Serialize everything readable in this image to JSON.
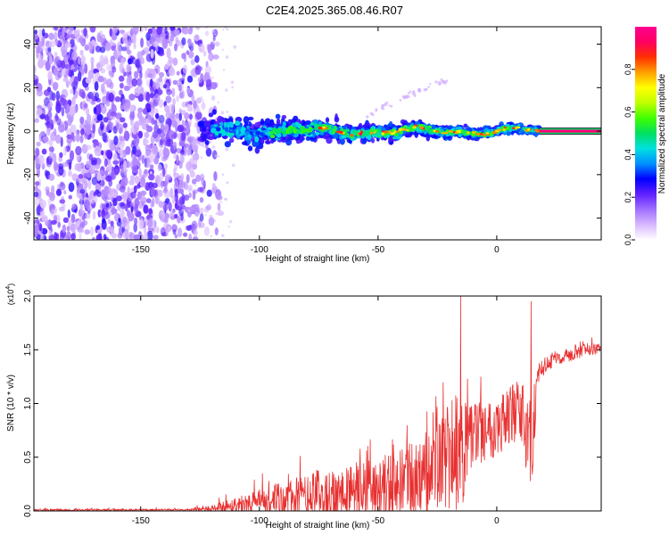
{
  "title": "C2E4.2025.365.08.46.R07",
  "chart_data": [
    {
      "type": "heatmap",
      "title": "C2E4.2025.365.08.46.R07",
      "xlabel": "Height of straight line (km)",
      "ylabel": "Frequency (Hz)",
      "xlim": [
        -195,
        44
      ],
      "ylim": [
        -50,
        48
      ],
      "xticks": [
        -150,
        -100,
        -50,
        0
      ],
      "yticks": [
        -40,
        -20,
        0,
        20,
        40
      ],
      "colorbar": {
        "label": "Normalized spectral amplitude",
        "range": [
          0.0,
          1.0
        ],
        "ticks": [
          0.0,
          0.2,
          0.4,
          0.6,
          0.8
        ],
        "colors": [
          "#ffffff",
          "#d8b8ff",
          "#a070ff",
          "#6020ff",
          "#0000ff",
          "#0090ff",
          "#00e0e0",
          "#00e060",
          "#40ff00",
          "#c0ff00",
          "#ffff00",
          "#ffa000",
          "#ff3000",
          "#ff0060",
          "#ff0090"
        ]
      },
      "features": {
        "noise_region_x": [
          -195,
          -115
        ],
        "signal_start_x": -125,
        "signal_center_freq": 0,
        "signal_freq_spread_at_start": 5,
        "signal_freq_spread_at_end": 1,
        "strong_tone_start_x": 18,
        "secondary_line": {
          "x": [
            -55,
            -20
          ],
          "freq": [
            8,
            24
          ]
        }
      }
    },
    {
      "type": "line",
      "xlabel": "Height of straight line (km)",
      "ylabel": "SNR (10 * v/v)",
      "y_multiplier": "(x10",
      "y_multiplier_exp": "4",
      "y_multiplier_close": ")",
      "xlim": [
        -195,
        44
      ],
      "ylim": [
        0,
        2.0
      ],
      "xticks": [
        -150,
        -100,
        -50,
        0
      ],
      "yticks": [
        0.0,
        0.5,
        1.0,
        1.5,
        2.0
      ],
      "ytick_labels": [
        "0.0",
        "0.5",
        "1.0",
        "1.5",
        "2.0"
      ],
      "color": "#e83030",
      "envelope": {
        "x": [
          -195,
          -130,
          -120,
          -112,
          -100,
          -85,
          -75,
          -60,
          -50,
          -40,
          -30,
          -25,
          -20,
          -15,
          -10,
          0,
          10,
          13,
          15,
          17,
          20,
          30,
          44
        ],
        "base": [
          0.01,
          0.01,
          0.02,
          0.05,
          0.08,
          0.11,
          0.14,
          0.18,
          0.2,
          0.25,
          0.32,
          0.45,
          0.5,
          0.55,
          0.72,
          0.8,
          0.95,
          0.6,
          0.45,
          1.25,
          1.35,
          1.45,
          1.52
        ],
        "amp": [
          0.01,
          0.01,
          0.03,
          0.07,
          0.12,
          0.2,
          0.25,
          0.27,
          0.3,
          0.33,
          0.42,
          0.5,
          0.55,
          0.55,
          0.3,
          0.3,
          0.3,
          0.5,
          0.35,
          0.1,
          0.08,
          0.06,
          0.05
        ]
      },
      "spikes": [
        {
          "x": -15.2,
          "y": 2.0
        },
        {
          "x": 14.5,
          "y": 1.95
        },
        {
          "x": 15.2,
          "y": 0.42
        }
      ]
    }
  ]
}
